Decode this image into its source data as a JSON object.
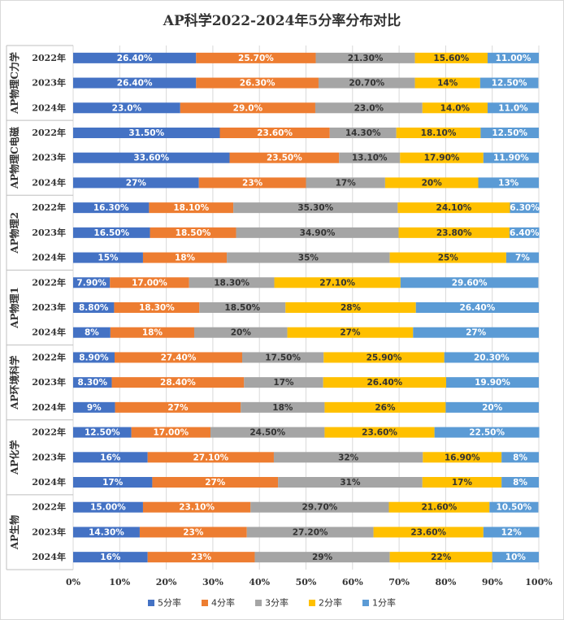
{
  "chart_data": {
    "type": "bar",
    "orientation": "horizontal",
    "stacked": true,
    "title": "AP科学2022-2024年5分率分布对比",
    "xlim": [
      0,
      100
    ],
    "x_ticks": [
      "0%",
      "10%",
      "20%",
      "30%",
      "40%",
      "50%",
      "60%",
      "70%",
      "80%",
      "90%",
      "100%"
    ],
    "grid": true,
    "legend_position": "bottom",
    "series": [
      {
        "name": "5分率",
        "color": "#4472C4"
      },
      {
        "name": "4分率",
        "color": "#ED7D31"
      },
      {
        "name": "3分率",
        "color": "#A5A5A5"
      },
      {
        "name": "2分率",
        "color": "#FFC000"
      },
      {
        "name": "1分率",
        "color": "#5B9BD5"
      }
    ],
    "groups": [
      {
        "name": "AP物理C力学",
        "rows": [
          {
            "year": "2022年",
            "values": [
              26.4,
              25.7,
              21.3,
              15.6,
              11.0
            ],
            "labels": [
              "26.40%",
              "25.70%",
              "21.30%",
              "15.60%",
              "11.00%"
            ]
          },
          {
            "year": "2023年",
            "values": [
              26.4,
              26.3,
              20.7,
              14.0,
              12.5
            ],
            "labels": [
              "26.40%",
              "26.30%",
              "20.70%",
              "14%",
              "12.50%"
            ]
          },
          {
            "year": "2024年",
            "values": [
              23.0,
              29.0,
              23.0,
              14.0,
              11.0
            ],
            "labels": [
              "23.0%",
              "29.0%",
              "23.0%",
              "14.0%",
              "11.0%"
            ]
          }
        ]
      },
      {
        "name": "AP物理C电磁",
        "rows": [
          {
            "year": "2022年",
            "values": [
              31.5,
              23.6,
              14.3,
              18.1,
              12.5
            ],
            "labels": [
              "31.50%",
              "23.60%",
              "14.30%",
              "18.10%",
              "12.50%"
            ]
          },
          {
            "year": "2023年",
            "values": [
              33.6,
              23.5,
              13.1,
              17.9,
              11.9
            ],
            "labels": [
              "33.60%",
              "23.50%",
              "13.10%",
              "17.90%",
              "11.90%"
            ]
          },
          {
            "year": "2024年",
            "values": [
              27,
              23,
              17,
              20,
              13
            ],
            "labels": [
              "27%",
              "23%",
              "17%",
              "20%",
              "13%"
            ]
          }
        ]
      },
      {
        "name": "AP物理2",
        "rows": [
          {
            "year": "2022年",
            "values": [
              16.3,
              18.1,
              35.3,
              24.1,
              6.3
            ],
            "labels": [
              "16.30%",
              "18.10%",
              "35.30%",
              "24.10%",
              "6.30%"
            ]
          },
          {
            "year": "2023年",
            "values": [
              16.5,
              18.5,
              34.9,
              23.8,
              6.4
            ],
            "labels": [
              "16.50%",
              "18.50%",
              "34.90%",
              "23.80%",
              "6.40%"
            ]
          },
          {
            "year": "2024年",
            "values": [
              15,
              18,
              35,
              25,
              7
            ],
            "labels": [
              "15%",
              "18%",
              "35%",
              "25%",
              "7%"
            ]
          }
        ]
      },
      {
        "name": "AP物理1",
        "rows": [
          {
            "year": "2022年",
            "values": [
              7.9,
              17.0,
              18.3,
              27.1,
              29.6
            ],
            "labels": [
              "7.90%",
              "17.00%",
              "18.30%",
              "27.10%",
              "29.60%"
            ]
          },
          {
            "year": "2023年",
            "values": [
              8.8,
              18.3,
              18.5,
              28,
              26.4
            ],
            "labels": [
              "8.80%",
              "18.30%",
              "18.50%",
              "28%",
              "26.40%"
            ]
          },
          {
            "year": "2024年",
            "values": [
              8,
              18,
              20,
              27,
              27
            ],
            "labels": [
              "8%",
              "18%",
              "20%",
              "27%",
              "27%"
            ]
          }
        ]
      },
      {
        "name": "AP环境科学",
        "rows": [
          {
            "year": "2022年",
            "values": [
              8.9,
              27.4,
              17.5,
              25.9,
              20.3
            ],
            "labels": [
              "8.90%",
              "27.40%",
              "17.50%",
              "25.90%",
              "20.30%"
            ]
          },
          {
            "year": "2023年",
            "values": [
              8.3,
              28.4,
              17,
              26.4,
              19.9
            ],
            "labels": [
              "8.30%",
              "28.40%",
              "17%",
              "26.40%",
              "19.90%"
            ]
          },
          {
            "year": "2024年",
            "values": [
              9,
              27,
              18,
              26,
              20
            ],
            "labels": [
              "9%",
              "27%",
              "18%",
              "26%",
              "20%"
            ]
          }
        ]
      },
      {
        "name": "AP化学",
        "rows": [
          {
            "year": "2022年",
            "values": [
              12.5,
              17.0,
              24.5,
              23.6,
              22.5
            ],
            "labels": [
              "12.50%",
              "17.00%",
              "24.50%",
              "23.60%",
              "22.50%"
            ]
          },
          {
            "year": "2023年",
            "values": [
              16,
              27.1,
              32,
              16.9,
              8
            ],
            "labels": [
              "16%",
              "27.10%",
              "32%",
              "16.90%",
              "8%"
            ]
          },
          {
            "year": "2024年",
            "values": [
              17,
              27,
              31,
              17,
              8
            ],
            "labels": [
              "17%",
              "27%",
              "31%",
              "17%",
              "8%"
            ]
          }
        ]
      },
      {
        "name": "AP生物",
        "rows": [
          {
            "year": "2022年",
            "values": [
              15.0,
              23.1,
              29.7,
              21.6,
              10.5
            ],
            "labels": [
              "15.00%",
              "23.10%",
              "29.70%",
              "21.60%",
              "10.50%"
            ]
          },
          {
            "year": "2023年",
            "values": [
              14.3,
              23,
              27.2,
              23.6,
              12
            ],
            "labels": [
              "14.30%",
              "23%",
              "27.20%",
              "23.60%",
              "12%"
            ]
          },
          {
            "year": "2024年",
            "values": [
              16,
              23,
              29,
              22,
              10
            ],
            "labels": [
              "16%",
              "23%",
              "29%",
              "22%",
              "10%"
            ]
          }
        ]
      }
    ]
  }
}
